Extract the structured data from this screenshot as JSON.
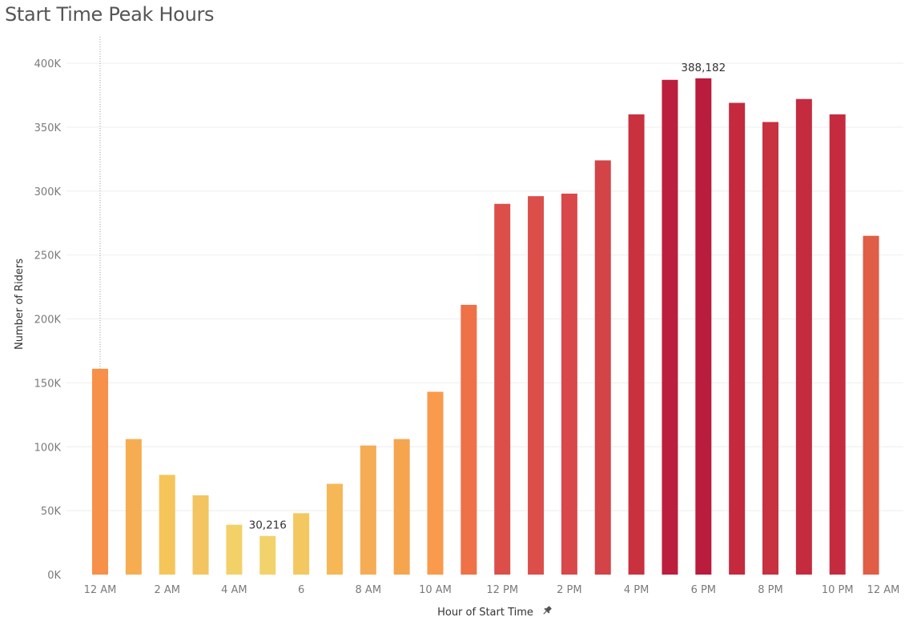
{
  "title": "Start Time Peak Hours",
  "chart_data": {
    "type": "bar",
    "title": "Start Time Peak Hours",
    "xlabel": "Hour of Start Time",
    "ylabel": "Number of Riders",
    "ylim": [
      0,
      400000
    ],
    "yticks": [
      0,
      50000,
      100000,
      150000,
      200000,
      250000,
      300000,
      350000,
      400000
    ],
    "ytick_labels": [
      "0K",
      "50K",
      "100K",
      "150K",
      "200K",
      "250K",
      "300K",
      "350K",
      "400K"
    ],
    "categories": [
      "12 AM",
      "1 AM",
      "2 AM",
      "3 AM",
      "4 AM",
      "5 AM",
      "6",
      "7 AM",
      "8 AM",
      "9 AM",
      "10 AM",
      "11 AM",
      "12 PM",
      "1 PM",
      "2 PM",
      "3 PM",
      "4 PM",
      "5 PM",
      "6 PM",
      "7 PM",
      "8 PM",
      "9 PM",
      "10 PM",
      "11 PM"
    ],
    "values": [
      161000,
      106000,
      78000,
      62000,
      39000,
      30216,
      48000,
      71000,
      101000,
      106000,
      143000,
      211000,
      290000,
      296000,
      298000,
      324000,
      360000,
      387000,
      388182,
      369000,
      354000,
      372000,
      360000,
      265000
    ],
    "bar_colors": [
      "#f79049",
      "#f6ad52",
      "#f5c55a",
      "#f3c45f",
      "#f3d169",
      "#f2d36b",
      "#f3c860",
      "#f6b756",
      "#f6ab55",
      "#f6a54f",
      "#f99a4c",
      "#ee7148",
      "#dc4e4a",
      "#dc4e4a",
      "#d8484a",
      "#d24447",
      "#c9313f",
      "#bb1f3d",
      "#b91c3d",
      "#c4293d",
      "#c8313f",
      "#c42b3f",
      "#c52b3f",
      "#e05d46"
    ],
    "xtick_labels": [
      "12 AM",
      "2 AM",
      "4 AM",
      "6",
      "8 AM",
      "10 AM",
      "12 PM",
      "2 PM",
      "4 PM",
      "6 PM",
      "8 PM",
      "10 PM",
      "12 AM"
    ],
    "data_labels": [
      {
        "category": "5 AM",
        "text": "30,216"
      },
      {
        "category": "6 PM",
        "text": "388,182"
      }
    ],
    "grid": true,
    "legend": "none"
  },
  "icons": {
    "pin": "pin-icon"
  }
}
